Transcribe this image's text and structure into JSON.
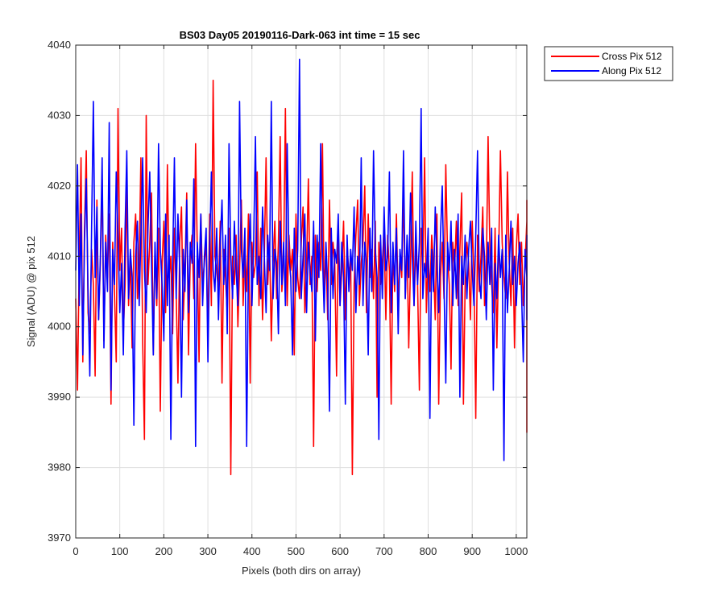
{
  "chart_data": {
    "type": "line",
    "title": "BS03 Day05 20190116-Dark-063 int time = 15 sec",
    "xlabel": "Pixels (both dirs on array)",
    "ylabel": "Signal (ADU) @ pix 512",
    "xlim": [
      0,
      1024
    ],
    "ylim": [
      3970,
      4040
    ],
    "xticks": [
      0,
      100,
      200,
      300,
      400,
      500,
      600,
      700,
      800,
      900,
      1000
    ],
    "yticks": [
      3970,
      3980,
      3990,
      4000,
      4010,
      4020,
      4030,
      4040
    ],
    "grid": true,
    "legend_position": "outside-top-right",
    "sample_step": 4,
    "series": [
      {
        "name": "Cross Pix 512",
        "color": "#ff0000",
        "values": [
          4004,
          3991,
          4010,
          4024,
          3995,
          4014,
          4025,
          4002,
          3999,
          4011,
          4006,
          3993,
          4018,
          4001,
          4009,
          4021,
          3998,
          4013,
          4007,
          4016,
          3989,
          4012,
          4005,
          3995,
          4031,
          4008,
          4014,
          3999,
          4006,
          4020,
          4003,
          4010,
          3997,
          4012,
          4016,
          4004,
          4009,
          4024,
          3998,
          3984,
          4030,
          4006,
          4012,
          4019,
          3996,
          4011,
          4003,
          4014,
          3988,
          4009,
          4015,
          4002,
          4023,
          4007,
          4010,
          3999,
          4014,
          4005,
          3992,
          4012,
          4017,
          4001,
          4008,
          4019,
          3996,
          4010,
          4013,
          4004,
          4026,
          4011,
          3995,
          4016,
          4006,
          4009,
          4012,
          3999,
          4016,
          4003,
          4035,
          4010,
          4008,
          4005,
          4015,
          3992,
          4011,
          4007,
          4002,
          4014,
          3979,
          4010,
          4006,
          4013,
          4000,
          4008,
          4018,
          4003,
          4011,
          4005,
          4016,
          3992,
          4012,
          4007,
          4009,
          4022,
          4003,
          4014,
          4001,
          4010,
          4024,
          4006,
          4012,
          3998,
          4009,
          4015,
          4004,
          4012,
          4027,
          4005,
          4010,
          4031,
          4003,
          4013,
          4008,
          4011,
          3996,
          4016,
          4007,
          4004,
          4012,
          4017,
          4002,
          4009,
          4021,
          4006,
          4010,
          3983,
          4013,
          4005,
          4012,
          4008,
          4026,
          4004,
          4011,
          4001,
          4018,
          4006,
          4012,
          4009,
          3993,
          4014,
          4003,
          4008,
          4015,
          4001,
          4012,
          4007,
          4010,
          3979,
          4006,
          4013,
          4018,
          4003,
          4009,
          4012,
          4020,
          4002,
          4016,
          4007,
          4011,
          4004,
          4015,
          3990,
          4012,
          4006,
          4009,
          4014,
          4001,
          4013,
          4008,
          3989,
          4011,
          4005,
          4016,
          4003,
          4010,
          4007,
          4019,
          4004,
          4012,
          3997,
          4009,
          4022,
          4003,
          4011,
          4006,
          3991,
          4014,
          4008,
          4024,
          4002,
          4010,
          4005,
          4013,
          4009,
          4001,
          4016,
          3989,
          4007,
          4012,
          4004,
          4023,
          4010,
          4006,
          3994,
          4012,
          4008,
          4015,
          4003,
          4011,
          4019,
          3989,
          4006,
          4012,
          4009,
          4001,
          4015,
          4007,
          3987,
          4013,
          4005,
          4010,
          4017,
          4003,
          4008,
          4027,
          4011,
          4006,
          4002,
          4014,
          3997,
          4010,
          4025,
          4012,
          4007,
          4004,
          4022,
          4009,
          4003,
          4014,
          3997,
          4011,
          4016,
          4006,
          4012,
          4003,
          4009,
          4015,
          4001,
          3985,
          4018
        ]
      },
      {
        "name": "Along Pix 512",
        "color": "#0000ff",
        "values": [
          4008,
          4023,
          4003,
          4016,
          3996,
          4012,
          4021,
          4005,
          3993,
          4014,
          4032,
          4007,
          4017,
          4001,
          4010,
          4024,
          3997,
          4012,
          4005,
          4029,
          3991,
          4011,
          4006,
          4022,
          4013,
          4002,
          4009,
          3996,
          4014,
          4025,
          4004,
          4011,
          4007,
          3986,
          4010,
          4015,
          4003,
          4013,
          4024,
          4008,
          4002,
          4014,
          4022,
          4009,
          3996,
          4012,
          4004,
          4026,
          4011,
          4006,
          3998,
          4016,
          4003,
          4013,
          3984,
          4009,
          4024,
          4004,
          4016,
          4008,
          3990,
          4011,
          4005,
          4018,
          4002,
          4012,
          4009,
          4021,
          3983,
          4012,
          4007,
          4016,
          4003,
          4010,
          4014,
          3995,
          4011,
          4022,
          4008,
          4005,
          4014,
          4001,
          4012,
          4018,
          4006,
          4013,
          3999,
          4026,
          4010,
          4004,
          4015,
          4008,
          4003,
          4032,
          4011,
          4007,
          4014,
          3983,
          4009,
          4016,
          4003,
          4012,
          4027,
          4006,
          4010,
          4004,
          4017,
          4010,
          4002,
          4013,
          4008,
          4032,
          4004,
          4011,
          4009,
          3999,
          4015,
          4006,
          4012,
          4003,
          4026,
          4010,
          4007,
          3996,
          4014,
          4005,
          4011,
          4038,
          4004,
          4010,
          4016,
          4002,
          4012,
          4008,
          4005,
          4015,
          3998,
          4013,
          4007,
          4026,
          4010,
          4002,
          4012,
          4006,
          3988,
          4014,
          4004,
          4011,
          4009,
          4016,
          4003,
          4012,
          4007,
          3989,
          4013,
          4005,
          4011,
          4008,
          4017,
          4002,
          4010,
          4006,
          4024,
          4003,
          4012,
          4009,
          3996,
          4014,
          4005,
          4025,
          4011,
          4007,
          3984,
          4013,
          4004,
          4017,
          4008,
          4010,
          4022,
          4002,
          4012,
          4006,
          4014,
          3999,
          4011,
          4008,
          4025,
          4004,
          4013,
          4007,
          4019,
          4010,
          4003,
          4015,
          4006,
          4012,
          4031,
          4004,
          4009,
          4007,
          4014,
          3987,
          4011,
          4005,
          4017,
          4009,
          4002,
          4013,
          4020,
          4006,
          3992,
          4012,
          4008,
          4015,
          4003,
          4011,
          4004,
          4016,
          3990,
          4010,
          4006,
          4013,
          4004,
          4011,
          4015,
          4008,
          4003,
          4013,
          4025,
          4007,
          4004,
          4014,
          4010,
          4001,
          4012,
          4006,
          4014,
          3991,
          4009,
          4004,
          4013,
          4007,
          4011,
          3981,
          4013,
          4002,
          4008,
          4015,
          4006,
          4010,
          4003,
          4009,
          4012,
          4005,
          3995,
          4011,
          4007,
          4013,
          4001,
          4012,
          4008,
          4004
        ]
      }
    ]
  }
}
